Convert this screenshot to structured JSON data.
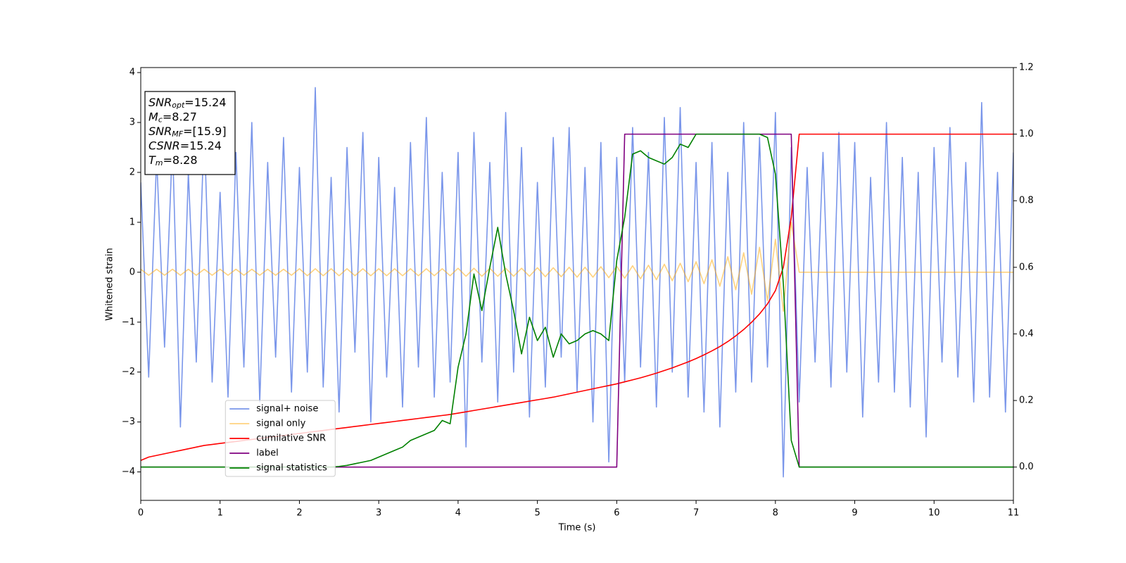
{
  "chart_data": {
    "type": "line",
    "xlabel": "Time (s)",
    "ylabel": "Whitened strain",
    "x": [
      0,
      0.1,
      0.2,
      0.3,
      0.4,
      0.5,
      0.6,
      0.7,
      0.8,
      0.9,
      1,
      1.1,
      1.2,
      1.3,
      1.4,
      1.5,
      1.6,
      1.7,
      1.8,
      1.9,
      2,
      2.1,
      2.2,
      2.3,
      2.4,
      2.5,
      2.6,
      2.7,
      2.8,
      2.9,
      3,
      3.1,
      3.2,
      3.3,
      3.4,
      3.5,
      3.6,
      3.7,
      3.8,
      3.9,
      4,
      4.1,
      4.2,
      4.3,
      4.4,
      4.5,
      4.6,
      4.7,
      4.8,
      4.9,
      5,
      5.1,
      5.2,
      5.3,
      5.4,
      5.5,
      5.6,
      5.7,
      5.8,
      5.9,
      6,
      6.1,
      6.2,
      6.3,
      6.4,
      6.5,
      6.6,
      6.7,
      6.8,
      6.9,
      7,
      7.1,
      7.2,
      7.3,
      7.4,
      7.5,
      7.6,
      7.7,
      7.8,
      7.9,
      8,
      8.1,
      8.2,
      8.3,
      8.4,
      8.5,
      8.6,
      8.7,
      8.8,
      8.9,
      9,
      9.1,
      9.2,
      9.3,
      9.4,
      9.5,
      9.6,
      9.7,
      9.8,
      9.9,
      10,
      10.1,
      10.2,
      10.3,
      10.4,
      10.5,
      10.6,
      10.7,
      10.8,
      10.9,
      11
    ],
    "series": [
      {
        "name": "signal+ noise",
        "color": "#4169e1",
        "alpha": 0.7,
        "values": [
          1.8,
          -2.1,
          2.3,
          -1.5,
          2.6,
          -3.1,
          2.0,
          -1.8,
          2.9,
          -2.2,
          1.6,
          -2.5,
          2.4,
          -1.9,
          3.0,
          -2.6,
          2.2,
          -1.7,
          2.7,
          -2.4,
          2.1,
          -2.0,
          3.7,
          -2.3,
          1.9,
          -2.8,
          2.5,
          -1.6,
          2.8,
          -3.0,
          2.3,
          -2.1,
          1.7,
          -2.7,
          2.6,
          -1.9,
          3.1,
          -2.5,
          2.0,
          -2.2,
          2.4,
          -3.5,
          2.8,
          -1.8,
          2.2,
          -2.6,
          3.2,
          -2.0,
          2.5,
          -2.9,
          1.8,
          -2.3,
          2.7,
          -1.7,
          2.9,
          -2.4,
          2.1,
          -3.0,
          2.6,
          -3.8,
          2.3,
          -2.2,
          2.9,
          -1.9,
          2.4,
          -2.7,
          3.1,
          -2.0,
          3.3,
          -2.5,
          2.2,
          -2.8,
          2.6,
          -3.1,
          2.0,
          -2.4,
          3.0,
          -2.2,
          2.7,
          -1.9,
          3.2,
          -4.1,
          2.5,
          -2.6,
          2.1,
          -1.8,
          2.4,
          -2.3,
          2.8,
          -2.0,
          2.6,
          -2.9,
          1.9,
          -2.2,
          3.0,
          -2.4,
          2.3,
          -2.7,
          2.0,
          -3.3,
          2.5,
          -1.8,
          2.9,
          -2.1,
          2.2,
          -2.6,
          3.4,
          -2.5,
          2.0,
          -2.8,
          2.4
        ]
      },
      {
        "name": "signal only",
        "color": "#ffa500",
        "alpha": 0.5,
        "values": [
          0.06,
          -0.06,
          0.06,
          -0.06,
          0.06,
          -0.06,
          0.06,
          -0.06,
          0.06,
          -0.06,
          0.06,
          -0.06,
          0.06,
          -0.06,
          0.06,
          -0.06,
          0.06,
          -0.06,
          0.06,
          -0.06,
          0.07,
          -0.07,
          0.07,
          -0.07,
          0.07,
          -0.07,
          0.07,
          -0.07,
          0.07,
          -0.07,
          0.07,
          -0.07,
          0.07,
          -0.07,
          0.07,
          -0.07,
          0.07,
          -0.07,
          0.07,
          -0.07,
          0.08,
          -0.08,
          0.08,
          -0.08,
          0.08,
          -0.08,
          0.08,
          -0.08,
          0.08,
          -0.08,
          0.09,
          -0.09,
          0.09,
          -0.09,
          0.1,
          -0.1,
          0.1,
          -0.1,
          0.11,
          -0.11,
          0.12,
          -0.12,
          0.13,
          -0.13,
          0.14,
          -0.15,
          0.16,
          -0.17,
          0.18,
          -0.19,
          0.21,
          -0.23,
          0.25,
          -0.28,
          0.31,
          -0.35,
          0.39,
          -0.44,
          0.5,
          -0.57,
          0.66,
          -0.78,
          1.0,
          0,
          0,
          0,
          0,
          0,
          0,
          0,
          0,
          0,
          0,
          0,
          0,
          0,
          0,
          0,
          0,
          0,
          0,
          0,
          0,
          0,
          0,
          0,
          0,
          0,
          0,
          0,
          0
        ]
      },
      {
        "name": "cumilative SNR",
        "color": "#ff0000",
        "axis": "y2",
        "values": [
          0.02,
          0.03,
          0.035,
          0.04,
          0.045,
          0.05,
          0.055,
          0.06,
          0.065,
          0.068,
          0.071,
          0.074,
          0.077,
          0.08,
          0.083,
          0.086,
          0.089,
          0.092,
          0.095,
          0.098,
          0.101,
          0.104,
          0.107,
          0.11,
          0.113,
          0.116,
          0.119,
          0.122,
          0.125,
          0.128,
          0.131,
          0.134,
          0.137,
          0.14,
          0.143,
          0.146,
          0.149,
          0.152,
          0.155,
          0.158,
          0.162,
          0.166,
          0.17,
          0.174,
          0.178,
          0.182,
          0.186,
          0.19,
          0.194,
          0.198,
          0.202,
          0.206,
          0.21,
          0.215,
          0.22,
          0.225,
          0.23,
          0.235,
          0.24,
          0.245,
          0.25,
          0.256,
          0.262,
          0.268,
          0.275,
          0.282,
          0.29,
          0.298,
          0.307,
          0.316,
          0.326,
          0.337,
          0.349,
          0.362,
          0.377,
          0.394,
          0.413,
          0.435,
          0.46,
          0.49,
          0.53,
          0.6,
          0.75,
          1,
          1,
          1,
          1,
          1,
          1,
          1,
          1,
          1,
          1,
          1,
          1,
          1,
          1,
          1,
          1,
          1,
          1,
          1,
          1,
          1,
          1,
          1,
          1,
          1,
          1,
          1,
          1
        ]
      },
      {
        "name": "label",
        "color": "#800080",
        "axis": "y2",
        "values": [
          0,
          0,
          0,
          0,
          0,
          0,
          0,
          0,
          0,
          0,
          0,
          0,
          0,
          0,
          0,
          0,
          0,
          0,
          0,
          0,
          0,
          0,
          0,
          0,
          0,
          0,
          0,
          0,
          0,
          0,
          0,
          0,
          0,
          0,
          0,
          0,
          0,
          0,
          0,
          0,
          0,
          0,
          0,
          0,
          0,
          0,
          0,
          0,
          0,
          0,
          0,
          0,
          0,
          0,
          0,
          0,
          0,
          0,
          0,
          0,
          0,
          1,
          1,
          1,
          1,
          1,
          1,
          1,
          1,
          1,
          1,
          1,
          1,
          1,
          1,
          1,
          1,
          1,
          1,
          1,
          1,
          1,
          1,
          0,
          0,
          0,
          0,
          0,
          0,
          0,
          0,
          0,
          0,
          0,
          0,
          0,
          0,
          0,
          0,
          0,
          0,
          0,
          0,
          0,
          0,
          0,
          0,
          0,
          0,
          0,
          0
        ]
      },
      {
        "name": "signal statistics",
        "color": "#008000",
        "axis": "y2",
        "values": [
          0,
          0,
          0,
          0,
          0,
          0,
          0,
          0,
          0,
          0,
          0,
          0,
          0,
          0,
          0,
          0,
          0,
          0,
          0,
          0,
          0,
          0,
          0,
          0,
          0,
          0.002,
          0.005,
          0.01,
          0.015,
          0.02,
          0.03,
          0.04,
          0.05,
          0.06,
          0.08,
          0.09,
          0.1,
          0.11,
          0.14,
          0.13,
          0.3,
          0.4,
          0.58,
          0.47,
          0.6,
          0.72,
          0.58,
          0.47,
          0.34,
          0.45,
          0.38,
          0.42,
          0.33,
          0.4,
          0.37,
          0.38,
          0.4,
          0.41,
          0.4,
          0.38,
          0.62,
          0.75,
          0.94,
          0.95,
          0.93,
          0.92,
          0.91,
          0.93,
          0.97,
          0.96,
          1,
          1,
          1,
          1,
          1,
          1,
          1,
          1,
          1,
          0.99,
          0.88,
          0.55,
          0.08,
          0,
          0,
          0,
          0,
          0,
          0,
          0,
          0,
          0,
          0,
          0,
          0,
          0,
          0,
          0,
          0,
          0,
          0,
          0,
          0,
          0,
          0,
          0,
          0,
          0,
          0,
          0,
          0
        ]
      }
    ],
    "xlim": [
      0,
      11
    ],
    "xticks": [
      0,
      1,
      2,
      3,
      4,
      5,
      6,
      7,
      8,
      9,
      10,
      11
    ],
    "ylim": [
      -4.57,
      4.1
    ],
    "yticks": [
      {
        "value": -4,
        "label": "−4"
      },
      {
        "value": -3,
        "label": "−3"
      },
      {
        "value": -2,
        "label": "−2"
      },
      {
        "value": -1,
        "label": "−1"
      },
      0,
      1,
      2,
      3,
      4
    ],
    "y2lim": [
      -0.1,
      1.2
    ],
    "y2ticks": [
      {
        "value": 0,
        "label": "0.0"
      },
      0.2,
      0.4,
      0.6,
      0.8,
      {
        "value": 1,
        "label": "1.0"
      },
      1.2
    ],
    "legend": "lower left",
    "annotation": [
      {
        "symbol": "SNR",
        "subscript": "opt",
        "value": "=15.24"
      },
      {
        "symbol": "M",
        "subscript": "c",
        "value": "=8.27"
      },
      {
        "symbol": "SNR",
        "subscript": "MF",
        "value": "=[15.9]"
      },
      {
        "symbol": "CSNR",
        "value": "=15.24"
      },
      {
        "symbol": "T",
        "subscript": "m",
        "value": "=8.28"
      }
    ]
  }
}
